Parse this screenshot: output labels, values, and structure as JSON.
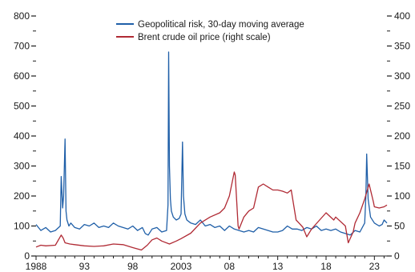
{
  "chart_data": {
    "type": "line",
    "title": "",
    "xlabel": "",
    "ylabel_left": "",
    "ylabel_right": "",
    "grid": false,
    "legend_position": "top-center",
    "xlim": [
      1988,
      2024.3
    ],
    "x_ticks": [
      1988,
      1993,
      1998,
      2003,
      2008,
      2013,
      2018,
      2023
    ],
    "x_tick_labels": [
      "1988",
      "93",
      "98",
      "2003",
      "08",
      "13",
      "18",
      "23"
    ],
    "y_left_lim": [
      0,
      800
    ],
    "y_left_ticks": [
      0,
      100,
      200,
      300,
      400,
      500,
      600,
      700,
      800
    ],
    "y_left_tick_labels": [
      "0",
      "100",
      "200",
      "300",
      "400",
      "500",
      "600",
      "700",
      "800"
    ],
    "y_right_lim": [
      0,
      400
    ],
    "y_right_ticks": [
      0,
      50,
      100,
      150,
      200,
      250,
      300,
      350,
      400
    ],
    "y_right_tick_labels": [
      "0",
      "50",
      "100",
      "150",
      "200",
      "250",
      "300",
      "350",
      "400"
    ],
    "series": [
      {
        "name": "Geopolitical risk, 30-day moving average",
        "axis": "left",
        "color": "#1f5fa8",
        "x": [
          1988.0,
          1988.5,
          1989.0,
          1989.5,
          1990.0,
          1990.5,
          1990.6,
          1990.75,
          1990.85,
          1991.0,
          1991.1,
          1991.2,
          1991.4,
          1991.6,
          1992.0,
          1992.5,
          1993.0,
          1993.5,
          1994.0,
          1994.5,
          1995.0,
          1995.5,
          1996.0,
          1996.5,
          1997.0,
          1997.5,
          1998.0,
          1998.5,
          1999.0,
          1999.3,
          1999.6,
          2000.0,
          2000.5,
          2001.0,
          2001.5,
          2001.65,
          2001.72,
          2001.8,
          2001.9,
          2002.0,
          2002.2,
          2002.5,
          2002.8,
          2003.0,
          2003.15,
          2003.25,
          2003.4,
          2003.6,
          2004.0,
          2004.5,
          2005.0,
          2005.5,
          2006.0,
          2006.5,
          2007.0,
          2007.5,
          2008.0,
          2008.5,
          2009.0,
          2009.5,
          2010.0,
          2010.5,
          2011.0,
          2011.5,
          2012.0,
          2012.5,
          2013.0,
          2013.5,
          2014.0,
          2014.5,
          2015.0,
          2015.5,
          2016.0,
          2016.5,
          2017.0,
          2017.5,
          2018.0,
          2018.5,
          2019.0,
          2019.5,
          2020.0,
          2020.5,
          2021.0,
          2021.5,
          2022.0,
          2022.12,
          2022.2,
          2022.35,
          2022.6,
          2023.0,
          2023.5,
          2023.8,
          2024.0,
          2024.3
        ],
        "values": [
          105,
          85,
          95,
          80,
          85,
          100,
          265,
          160,
          200,
          390,
          150,
          120,
          100,
          110,
          95,
          90,
          105,
          100,
          110,
          95,
          100,
          95,
          110,
          100,
          95,
          90,
          100,
          85,
          95,
          75,
          70,
          90,
          95,
          80,
          85,
          170,
          680,
          300,
          190,
          150,
          130,
          120,
          125,
          140,
          380,
          200,
          140,
          120,
          110,
          105,
          120,
          100,
          105,
          95,
          100,
          85,
          100,
          90,
          85,
          80,
          85,
          80,
          95,
          90,
          85,
          80,
          80,
          85,
          100,
          90,
          90,
          85,
          95,
          90,
          100,
          85,
          90,
          85,
          90,
          80,
          75,
          70,
          85,
          80,
          110,
          200,
          340,
          190,
          130,
          110,
          100,
          105,
          120,
          110
        ]
      },
      {
        "name": "Brent crude oil price (right scale)",
        "axis": "right",
        "color": "#b02a34",
        "x": [
          1988.0,
          1988.5,
          1989.0,
          1990.0,
          1990.6,
          1990.8,
          1991.0,
          1991.5,
          1992.0,
          1993.0,
          1994.0,
          1995.0,
          1996.0,
          1997.0,
          1998.0,
          1998.9,
          1999.5,
          2000.0,
          2000.5,
          2001.0,
          2001.8,
          2002.5,
          2003.0,
          2004.0,
          2005.0,
          2006.0,
          2007.0,
          2007.5,
          2008.0,
          2008.5,
          2008.6,
          2008.9,
          2009.0,
          2009.5,
          2010.0,
          2010.5,
          2011.0,
          2011.5,
          2012.0,
          2012.5,
          2013.0,
          2013.5,
          2014.0,
          2014.4,
          2014.9,
          2015.2,
          2015.6,
          2016.0,
          2016.5,
          2017.0,
          2018.0,
          2018.8,
          2019.0,
          2020.0,
          2020.3,
          2020.8,
          2021.0,
          2021.5,
          2022.0,
          2022.45,
          2022.9,
          2023.0,
          2023.5,
          2024.0,
          2024.3
        ],
        "values": [
          15,
          18,
          17,
          18,
          35,
          30,
          22,
          20,
          19,
          17,
          16,
          17,
          20,
          19,
          14,
          10,
          18,
          27,
          30,
          25,
          20,
          25,
          29,
          38,
          55,
          65,
          72,
          80,
          100,
          140,
          135,
          50,
          45,
          65,
          75,
          80,
          115,
          120,
          115,
          110,
          110,
          108,
          105,
          110,
          60,
          55,
          48,
          32,
          45,
          54,
          72,
          60,
          65,
          50,
          22,
          40,
          55,
          72,
          95,
          120,
          90,
          82,
          80,
          82,
          85
        ]
      }
    ]
  }
}
